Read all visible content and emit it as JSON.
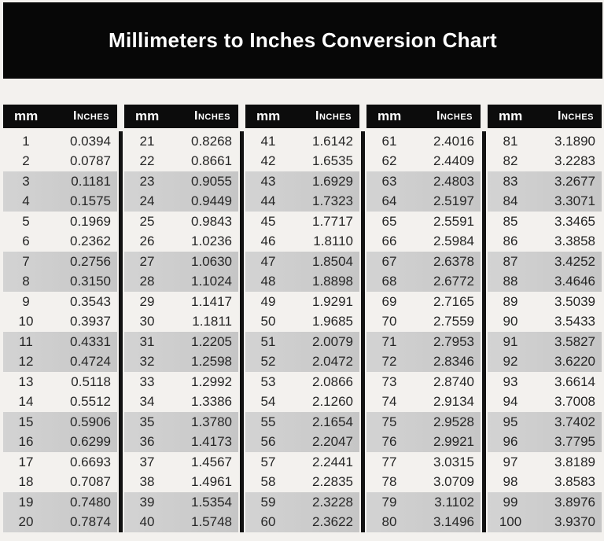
{
  "title": "Millimeters to Inches Conversion Chart",
  "columns": {
    "mm": "mm",
    "inches": "Inches"
  },
  "colors": {
    "page_bg": "#f3f1ee",
    "banner_bg": "#070707",
    "banner_text": "#ffffff",
    "header_bg": "#0c0c0c",
    "header_text": "#ffffff",
    "shaded_row": "#cbcbcb",
    "plain_row": "#f3f1ee",
    "divider": "#121212",
    "value_text": "#262626"
  },
  "chart_data": {
    "type": "table",
    "title": "Millimeters to Inches Conversion Chart",
    "columns": [
      "mm",
      "Inches"
    ],
    "layout": "five side-by-side two-column tables separated by black vertical lines",
    "row_shading": "rows shaded gray in alternating pairs: rows 3-4, 7-8, 11-12, 15-16, 19-20 of each table",
    "tables": [
      {
        "rows": [
          [
            1,
            "0.0394"
          ],
          [
            2,
            "0.0787"
          ],
          [
            3,
            "0.1181"
          ],
          [
            4,
            "0.1575"
          ],
          [
            5,
            "0.1969"
          ],
          [
            6,
            "0.2362"
          ],
          [
            7,
            "0.2756"
          ],
          [
            8,
            "0.3150"
          ],
          [
            9,
            "0.3543"
          ],
          [
            10,
            "0.3937"
          ],
          [
            11,
            "0.4331"
          ],
          [
            12,
            "0.4724"
          ],
          [
            13,
            "0.5118"
          ],
          [
            14,
            "0.5512"
          ],
          [
            15,
            "0.5906"
          ],
          [
            16,
            "0.6299"
          ],
          [
            17,
            "0.6693"
          ],
          [
            18,
            "0.7087"
          ],
          [
            19,
            "0.7480"
          ],
          [
            20,
            "0.7874"
          ]
        ]
      },
      {
        "rows": [
          [
            21,
            "0.8268"
          ],
          [
            22,
            "0.8661"
          ],
          [
            23,
            "0.9055"
          ],
          [
            24,
            "0.9449"
          ],
          [
            25,
            "0.9843"
          ],
          [
            26,
            "1.0236"
          ],
          [
            27,
            "1.0630"
          ],
          [
            28,
            "1.1024"
          ],
          [
            29,
            "1.1417"
          ],
          [
            30,
            "1.1811"
          ],
          [
            31,
            "1.2205"
          ],
          [
            32,
            "1.2598"
          ],
          [
            33,
            "1.2992"
          ],
          [
            34,
            "1.3386"
          ],
          [
            35,
            "1.3780"
          ],
          [
            36,
            "1.4173"
          ],
          [
            37,
            "1.4567"
          ],
          [
            38,
            "1.4961"
          ],
          [
            39,
            "1.5354"
          ],
          [
            40,
            "1.5748"
          ]
        ]
      },
      {
        "rows": [
          [
            41,
            "1.6142"
          ],
          [
            42,
            "1.6535"
          ],
          [
            43,
            "1.6929"
          ],
          [
            44,
            "1.7323"
          ],
          [
            45,
            "1.7717"
          ],
          [
            46,
            "1.8110"
          ],
          [
            47,
            "1.8504"
          ],
          [
            48,
            "1.8898"
          ],
          [
            49,
            "1.9291"
          ],
          [
            50,
            "1.9685"
          ],
          [
            51,
            "2.0079"
          ],
          [
            52,
            "2.0472"
          ],
          [
            53,
            "2.0866"
          ],
          [
            54,
            "2.1260"
          ],
          [
            55,
            "2.1654"
          ],
          [
            56,
            "2.2047"
          ],
          [
            57,
            "2.2441"
          ],
          [
            58,
            "2.2835"
          ],
          [
            59,
            "2.3228"
          ],
          [
            60,
            "2.3622"
          ]
        ]
      },
      {
        "rows": [
          [
            61,
            "2.4016"
          ],
          [
            62,
            "2.4409"
          ],
          [
            63,
            "2.4803"
          ],
          [
            64,
            "2.5197"
          ],
          [
            65,
            "2.5591"
          ],
          [
            66,
            "2.5984"
          ],
          [
            67,
            "2.6378"
          ],
          [
            68,
            "2.6772"
          ],
          [
            69,
            "2.7165"
          ],
          [
            70,
            "2.7559"
          ],
          [
            71,
            "2.7953"
          ],
          [
            72,
            "2.8346"
          ],
          [
            73,
            "2.8740"
          ],
          [
            74,
            "2.9134"
          ],
          [
            75,
            "2.9528"
          ],
          [
            76,
            "2.9921"
          ],
          [
            77,
            "3.0315"
          ],
          [
            78,
            "3.0709"
          ],
          [
            79,
            "3.1102"
          ],
          [
            80,
            "3.1496"
          ]
        ]
      },
      {
        "rows": [
          [
            81,
            "3.1890"
          ],
          [
            82,
            "3.2283"
          ],
          [
            83,
            "3.2677"
          ],
          [
            84,
            "3.3071"
          ],
          [
            85,
            "3.3465"
          ],
          [
            86,
            "3.3858"
          ],
          [
            87,
            "3.4252"
          ],
          [
            88,
            "3.4646"
          ],
          [
            89,
            "3.5039"
          ],
          [
            90,
            "3.5433"
          ],
          [
            91,
            "3.5827"
          ],
          [
            92,
            "3.6220"
          ],
          [
            93,
            "3.6614"
          ],
          [
            94,
            "3.7008"
          ],
          [
            95,
            "3.7402"
          ],
          [
            96,
            "3.7795"
          ],
          [
            97,
            "3.8189"
          ],
          [
            98,
            "3.8583"
          ],
          [
            99,
            "3.8976"
          ],
          [
            100,
            "3.9370"
          ]
        ]
      }
    ]
  }
}
